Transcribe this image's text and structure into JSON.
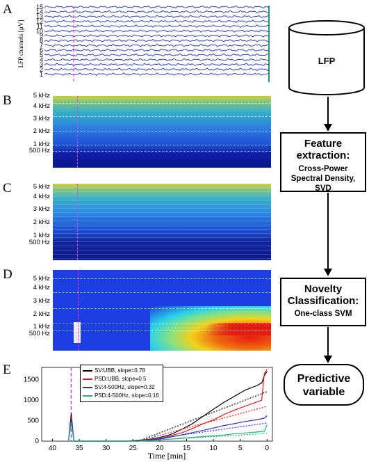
{
  "panels": {
    "a": "A",
    "b": "B",
    "c": "C",
    "d": "D",
    "e": "E"
  },
  "panel_a": {
    "ylabel": "LFP channels [µV]",
    "channels": [
      "15",
      "14",
      "13",
      "12",
      "11",
      "10",
      "9",
      "8",
      "7",
      "6",
      "5",
      "4",
      "3",
      "2",
      "1"
    ]
  },
  "spectro_ticks": [
    "5 kHz",
    "4 kHz",
    "3 kHz",
    "2 kHz",
    "1 kHz",
    "500 Hz"
  ],
  "flow": {
    "lfp": "LFP",
    "feature_title": "Feature extraction:",
    "feature_sub": "Cross-Power Spectral Density, SVD",
    "novelty_title": "Novelty Classification:",
    "novelty_sub": "One-class SVM",
    "predictive": "Predictive variable"
  },
  "colors": {
    "black_series": "#000000",
    "red_series": "#e8191c",
    "blue_series": "#2b2bd8",
    "green_series": "#22b27a",
    "event_line": "#e040e0"
  },
  "chart_data": {
    "type": "line",
    "xlabel": "Time [min]",
    "ylabel": "",
    "xlim": [
      42,
      -1
    ],
    "ylim": [
      0,
      1800
    ],
    "x_ticks": [
      40,
      35,
      30,
      25,
      20,
      15,
      10,
      5,
      0
    ],
    "y_ticks": [
      0,
      500,
      1000,
      1500
    ],
    "event_x": 36.5,
    "series": [
      {
        "name": "SV:UBB, slope=0.78",
        "color": "#000000",
        "x": [
          37,
          36.5,
          36,
          26,
          22,
          20,
          18,
          16,
          15,
          14,
          12,
          10,
          8,
          6,
          4,
          3,
          2,
          1,
          0.5,
          0
        ],
        "y": [
          0,
          680,
          0,
          0,
          40,
          90,
          160,
          280,
          350,
          420,
          600,
          780,
          950,
          1100,
          1250,
          1300,
          1350,
          1420,
          1600,
          1700
        ]
      },
      {
        "name": "PSD:UBB, slope=0.5",
        "color": "#e8191c",
        "x": [
          37,
          36.5,
          36,
          24,
          20,
          18,
          16,
          14,
          12,
          10,
          8,
          6,
          4,
          2,
          1,
          0.5,
          0
        ],
        "y": [
          0,
          600,
          0,
          0,
          60,
          130,
          200,
          300,
          420,
          520,
          650,
          760,
          860,
          950,
          1000,
          1650,
          1750
        ]
      },
      {
        "name": "SV:4-500Hz, slope=0.32",
        "color": "#2b2bd8",
        "x": [
          37,
          36.5,
          36,
          24,
          20,
          16,
          12,
          10,
          8,
          6,
          4,
          2,
          0.5,
          0
        ],
        "y": [
          0,
          560,
          0,
          0,
          50,
          150,
          260,
          320,
          380,
          430,
          480,
          520,
          560,
          620
        ]
      },
      {
        "name": "PSD:4-500Hz, slope=0.16",
        "color": "#22b27a",
        "x": [
          37,
          36.5,
          36,
          24,
          20,
          16,
          12,
          8,
          6,
          4,
          2,
          0.5,
          0
        ],
        "y": [
          0,
          450,
          0,
          0,
          30,
          70,
          110,
          150,
          180,
          200,
          220,
          240,
          400
        ]
      }
    ]
  }
}
